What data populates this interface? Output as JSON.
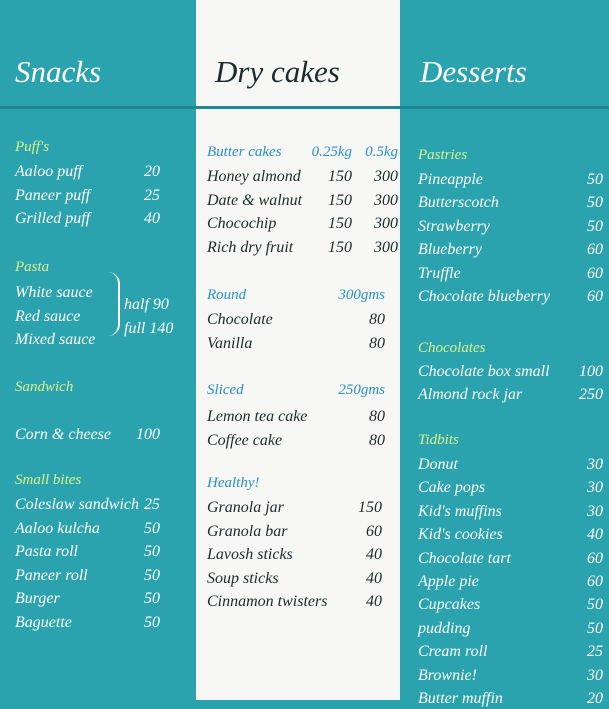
{
  "columns": [
    {
      "title": "Snacks",
      "sections": [
        {
          "title": "Puff's",
          "items": [
            {
              "name": "Aaloo puff",
              "price": 20
            },
            {
              "name": "Paneer puff",
              "price": 25
            },
            {
              "name": "Grilled puff",
              "price": 40
            }
          ]
        },
        {
          "title": "Pasta",
          "items": [
            {
              "name": "White sauce"
            },
            {
              "name": "Red sauce"
            },
            {
              "name": "Mixed sauce"
            }
          ],
          "options": [
            "half 90",
            "full 140"
          ]
        },
        {
          "title": "Sandwich",
          "items": [
            {
              "name": "Corn & cheese",
              "price": 100
            }
          ]
        },
        {
          "title": "Small bites",
          "items": [
            {
              "name": "Coleslaw sandwich",
              "price": 25
            },
            {
              "name": "Aaloo kulcha",
              "price": 50
            },
            {
              "name": "Pasta roll",
              "price": 50
            },
            {
              "name": "Paneer roll",
              "price": 50
            },
            {
              "name": "Burger",
              "price": 50
            },
            {
              "name": "Baguette",
              "price": 50
            }
          ]
        }
      ]
    },
    {
      "title": "Dry cakes",
      "sections": [
        {
          "title": "Butter cakes",
          "units": [
            "0.25kg",
            "0.5kg"
          ],
          "items": [
            {
              "name": "Honey almond",
              "price": [
                150,
                300
              ]
            },
            {
              "name": "Date & walnut",
              "price": [
                150,
                300
              ]
            },
            {
              "name": "Chocochip",
              "price": [
                150,
                300
              ]
            },
            {
              "name": "Rich dry fruit",
              "price": [
                150,
                300
              ]
            }
          ]
        },
        {
          "title": "Round",
          "units": [
            "300gms"
          ],
          "items": [
            {
              "name": "Chocolate",
              "price": 80
            },
            {
              "name": "Vanilla",
              "price": 80
            }
          ]
        },
        {
          "title": "Sliced",
          "units": [
            "250gms"
          ],
          "items": [
            {
              "name": "Lemon tea cake",
              "price": 80
            },
            {
              "name": "Coffee cake",
              "price": 80
            }
          ]
        },
        {
          "title": "Healthy!",
          "items": [
            {
              "name": "Granola jar",
              "price": 150
            },
            {
              "name": "Granola bar",
              "price": 60
            },
            {
              "name": "Lavosh sticks",
              "price": 40
            },
            {
              "name": "Soup sticks",
              "price": 40
            },
            {
              "name": "Cinnamon twisters",
              "price": 40
            }
          ]
        }
      ]
    },
    {
      "title": "Desserts",
      "sections": [
        {
          "title": "Pastries",
          "items": [
            {
              "name": "Pineapple",
              "price": 50
            },
            {
              "name": "Butterscotch",
              "price": 50
            },
            {
              "name": "Strawberry",
              "price": 50
            },
            {
              "name": "Blueberry",
              "price": 60
            },
            {
              "name": "Truffle",
              "price": 60
            },
            {
              "name": "Chocolate blueberry",
              "price": 60
            }
          ]
        },
        {
          "title": "Chocolates",
          "items": [
            {
              "name": "Chocolate box small",
              "price": 100
            },
            {
              "name": "Almond rock jar",
              "price": 250
            }
          ]
        },
        {
          "title": "Tidbits",
          "items": [
            {
              "name": "Donut",
              "price": 30
            },
            {
              "name": "Cake pops",
              "price": 30
            },
            {
              "name": "Kid's muffins",
              "price": 30
            },
            {
              "name": "Kid's cookies",
              "price": 40
            },
            {
              "name": "Chocolate tart",
              "price": 60
            },
            {
              "name": "Apple pie",
              "price": 60
            },
            {
              "name": "Cupcakes",
              "price": 50
            },
            {
              "name": "pudding",
              "price": 50
            },
            {
              "name": "Cream roll",
              "price": 25
            },
            {
              "name": "Brownie!",
              "price": 30
            },
            {
              "name": "Butter muffin",
              "price": 20
            }
          ]
        }
      ]
    }
  ]
}
